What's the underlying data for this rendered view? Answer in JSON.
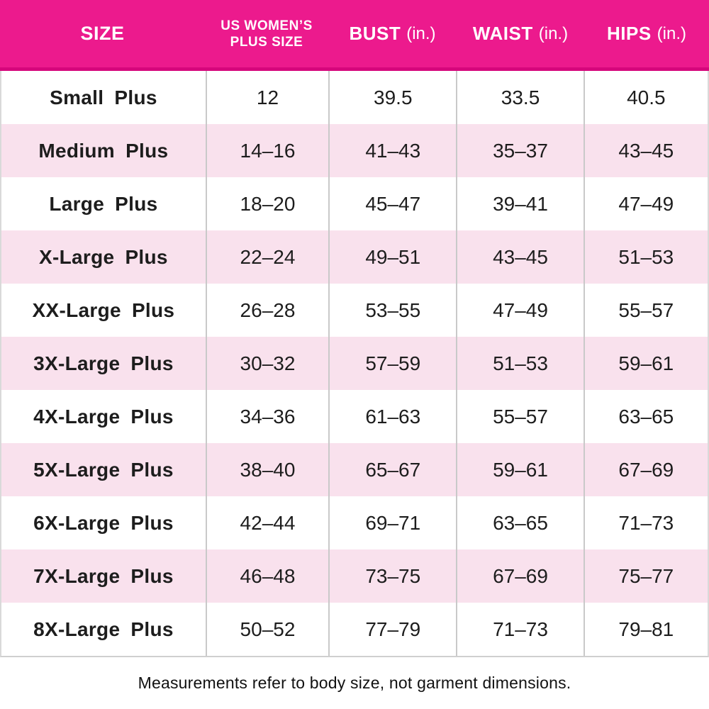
{
  "table": {
    "header": {
      "size": "SIZE",
      "us_line1": "US WOMEN’S",
      "us_line2": "PLUS SIZE",
      "bust": "BUST",
      "bust_unit": "(in.)",
      "waist": "WAIST",
      "waist_unit": "(in.)",
      "hips": "HIPS",
      "hips_unit": "(in.)"
    },
    "rows": [
      {
        "size": "Small Plus",
        "plus_size": "12",
        "bust": "39.5",
        "waist": "33.5",
        "hips": "40.5"
      },
      {
        "size": "Medium Plus",
        "plus_size": "14–16",
        "bust": "41–43",
        "waist": "35–37",
        "hips": "43–45"
      },
      {
        "size": "Large Plus",
        "plus_size": "18–20",
        "bust": "45–47",
        "waist": "39–41",
        "hips": "47–49"
      },
      {
        "size": "X-Large Plus",
        "plus_size": "22–24",
        "bust": "49–51",
        "waist": "43–45",
        "hips": "51–53"
      },
      {
        "size": "XX-Large Plus",
        "plus_size": "26–28",
        "bust": "53–55",
        "waist": "47–49",
        "hips": "55–57"
      },
      {
        "size": "3X-Large Plus",
        "plus_size": "30–32",
        "bust": "57–59",
        "waist": "51–53",
        "hips": "59–61"
      },
      {
        "size": "4X-Large Plus",
        "plus_size": "34–36",
        "bust": "61–63",
        "waist": "55–57",
        "hips": "63–65"
      },
      {
        "size": "5X-Large Plus",
        "plus_size": "38–40",
        "bust": "65–67",
        "waist": "59–61",
        "hips": "67–69"
      },
      {
        "size": "6X-Large Plus",
        "plus_size": "42–44",
        "bust": "69–71",
        "waist": "63–65",
        "hips": "71–73"
      },
      {
        "size": "7X-Large Plus",
        "plus_size": "46–48",
        "bust": "73–75",
        "waist": "67–69",
        "hips": "75–77"
      },
      {
        "size": "8X-Large Plus",
        "plus_size": "50–52",
        "bust": "77–79",
        "waist": "71–73",
        "hips": "79–81"
      }
    ]
  },
  "footer": {
    "note": "Measurements refer to body size, not garment dimensions."
  },
  "colors": {
    "header_bg": "#ec1a8d",
    "header_border": "#d6077c",
    "header_text": "#ffffff",
    "row_alt_bg": "#f9e1ed",
    "divider": "#c9c9c9",
    "text": "#1d1d1d"
  },
  "chart_data": {
    "type": "table",
    "columns": [
      "SIZE",
      "US WOMEN’S PLUS SIZE",
      "BUST (in.)",
      "WAIST (in.)",
      "HIPS (in.)"
    ],
    "rows": [
      [
        "Small Plus",
        "12",
        "39.5",
        "33.5",
        "40.5"
      ],
      [
        "Medium Plus",
        "14–16",
        "41–43",
        "35–37",
        "43–45"
      ],
      [
        "Large Plus",
        "18–20",
        "45–47",
        "39–41",
        "47–49"
      ],
      [
        "X-Large Plus",
        "22–24",
        "49–51",
        "43–45",
        "51–53"
      ],
      [
        "XX-Large Plus",
        "26–28",
        "53–55",
        "47–49",
        "55–57"
      ],
      [
        "3X-Large Plus",
        "30–32",
        "57–59",
        "51–53",
        "59–61"
      ],
      [
        "4X-Large Plus",
        "34–36",
        "61–63",
        "55–57",
        "63–65"
      ],
      [
        "5X-Large Plus",
        "38–40",
        "65–67",
        "59–61",
        "67–69"
      ],
      [
        "6X-Large Plus",
        "42–44",
        "69–71",
        "63–65",
        "71–73"
      ],
      [
        "7X-Large Plus",
        "46–48",
        "73–75",
        "67–69",
        "75–77"
      ],
      [
        "8X-Large Plus",
        "50–52",
        "77–79",
        "71–73",
        "79–81"
      ]
    ],
    "annotations": [
      "Measurements refer to body size, not garment dimensions."
    ],
    "layout": {
      "header_bg": "#ec1a8d",
      "alt_row_bg": "#f9e1ed",
      "grid": "vertical-dividers-only"
    }
  }
}
